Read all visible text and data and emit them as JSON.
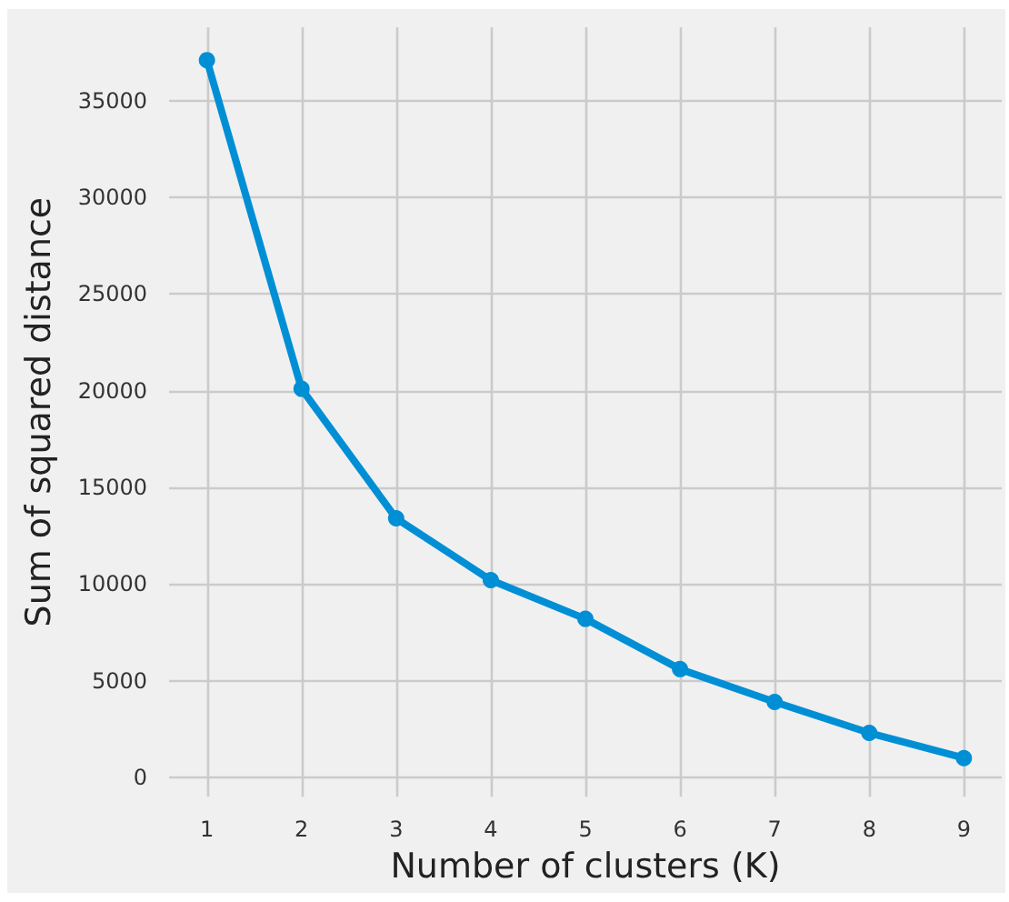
{
  "chart_data": {
    "type": "line",
    "xlabel": "Number of clusters (K)",
    "ylabel": "Sum of squared distance",
    "x": [
      1,
      2,
      3,
      4,
      5,
      6,
      7,
      8,
      9
    ],
    "series": [
      {
        "color": "#008fd5",
        "values": [
          37100,
          20100,
          13400,
          10200,
          8200,
          5600,
          3900,
          2300,
          1000
        ]
      }
    ],
    "xlim": [
      0.6,
      9.4
    ],
    "xticks": [
      1,
      2,
      3,
      4,
      5,
      6,
      7,
      8,
      9
    ],
    "ylim": [
      -1000,
      38800
    ],
    "yticks": [
      0,
      5000,
      10000,
      15000,
      20000,
      25000,
      30000,
      35000
    ],
    "grid": true,
    "marker": "circle",
    "line_style": "solid"
  }
}
